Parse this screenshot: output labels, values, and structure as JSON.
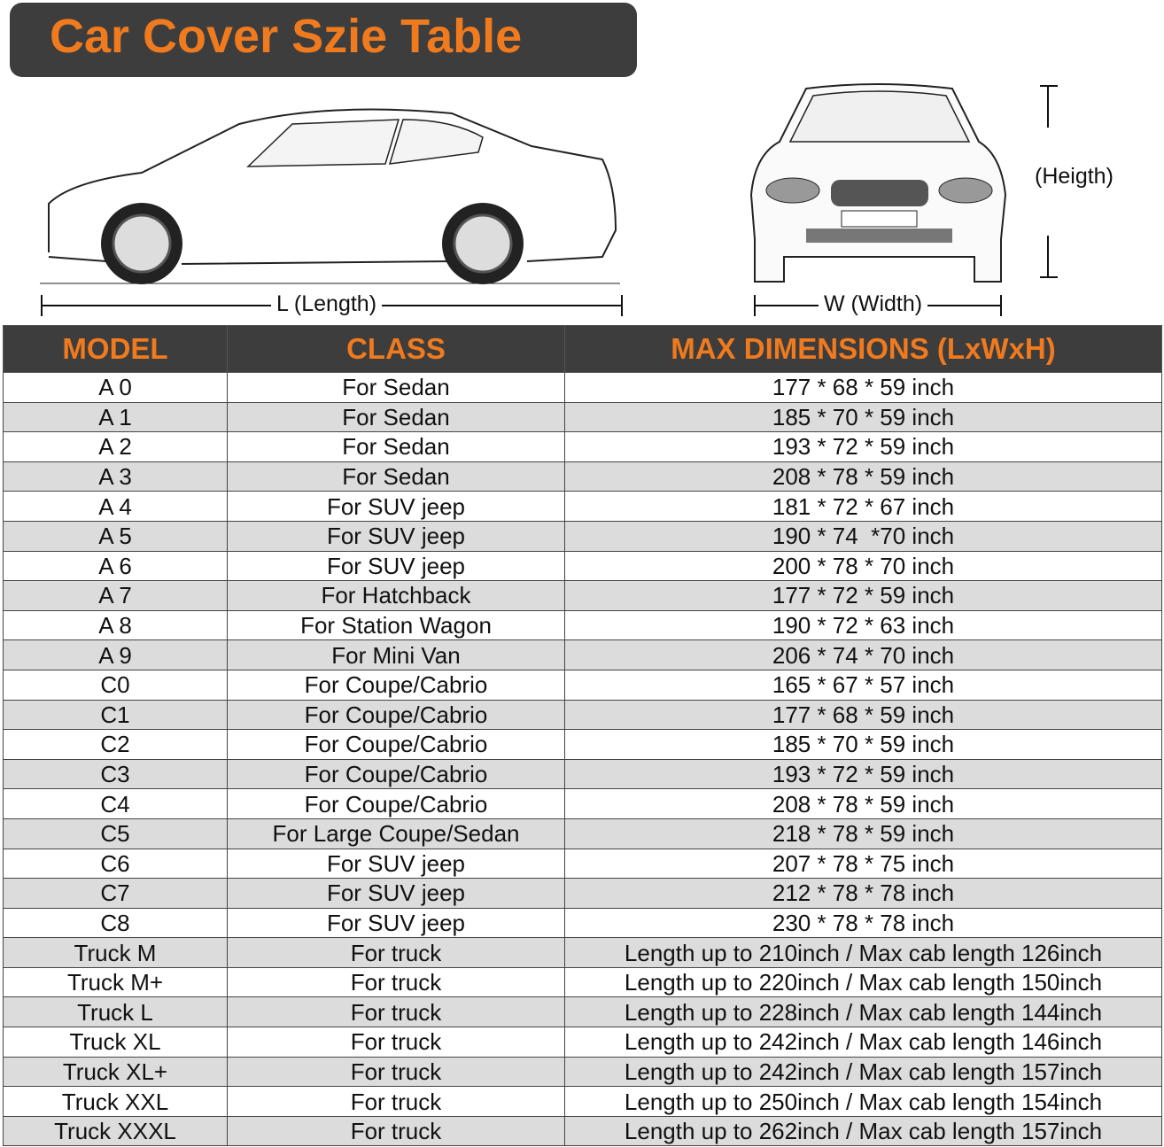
{
  "title": "Car Cover Szie Table",
  "diagram": {
    "length_label": "L (Length)",
    "width_label": "W (Width)",
    "height_label": "(Heigth)"
  },
  "table": {
    "headers": [
      "MODEL",
      "CLASS",
      "MAX DIMENSIONS (LxWxH)"
    ],
    "rows": [
      [
        "A 0",
        "For Sedan",
        "177 * 68 * 59 inch"
      ],
      [
        "A 1",
        "For Sedan",
        "185 * 70 * 59 inch"
      ],
      [
        "A 2",
        "For Sedan",
        "193 * 72 * 59 inch"
      ],
      [
        "A 3",
        "For Sedan",
        "208 * 78 * 59 inch"
      ],
      [
        "A 4",
        "For SUV jeep",
        "181 * 72 * 67 inch"
      ],
      [
        "A 5",
        "For SUV jeep",
        "190 * 74  *70 inch"
      ],
      [
        "A 6",
        "For SUV jeep",
        "200 * 78 * 70 inch"
      ],
      [
        "A 7",
        "For Hatchback",
        "177 * 72 * 59 inch"
      ],
      [
        "A 8",
        "For Station Wagon",
        "190 * 72 * 63 inch"
      ],
      [
        "A 9",
        "For Mini Van",
        "206 * 74 * 70 inch"
      ],
      [
        "C0",
        "For Coupe/Cabrio",
        "165 * 67 * 57 inch"
      ],
      [
        "C1",
        "For Coupe/Cabrio",
        "177 * 68 * 59 inch"
      ],
      [
        "C2",
        "For Coupe/Cabrio",
        "185 * 70 * 59 inch"
      ],
      [
        "C3",
        "For Coupe/Cabrio",
        "193 * 72 * 59 inch"
      ],
      [
        "C4",
        "For Coupe/Cabrio",
        "208 * 78 * 59 inch"
      ],
      [
        "C5",
        "For Large Coupe/Sedan",
        "218 * 78 * 59 inch"
      ],
      [
        "C6",
        "For SUV jeep",
        "207 * 78 * 75 inch"
      ],
      [
        "C7",
        "For SUV jeep",
        "212 * 78 * 78 inch"
      ],
      [
        "C8",
        "For SUV jeep",
        "230 * 78 * 78 inch"
      ],
      [
        "Truck M",
        "For truck",
        "Length up to 210inch / Max cab length 126inch"
      ],
      [
        "Truck M+",
        "For truck",
        "Length up to 220inch / Max cab length 150inch"
      ],
      [
        "Truck L",
        "For truck",
        "Length up to 228inch / Max cab length 144inch"
      ],
      [
        "Truck XL",
        "For truck",
        "Length up to 242inch / Max cab length 146inch"
      ],
      [
        "Truck XL+",
        "For truck",
        "Length up to 242inch / Max cab length 157inch"
      ],
      [
        "Truck XXL",
        "For truck",
        "Length up to 250inch / Max cab length 154inch"
      ],
      [
        "Truck XXXL",
        "For truck",
        "Length up to 262inch / Max cab length 157inch"
      ]
    ]
  },
  "colors": {
    "accent": "#f07a1e",
    "header_bg": "#3d3d3d",
    "stripe": "#dcdcdc"
  }
}
